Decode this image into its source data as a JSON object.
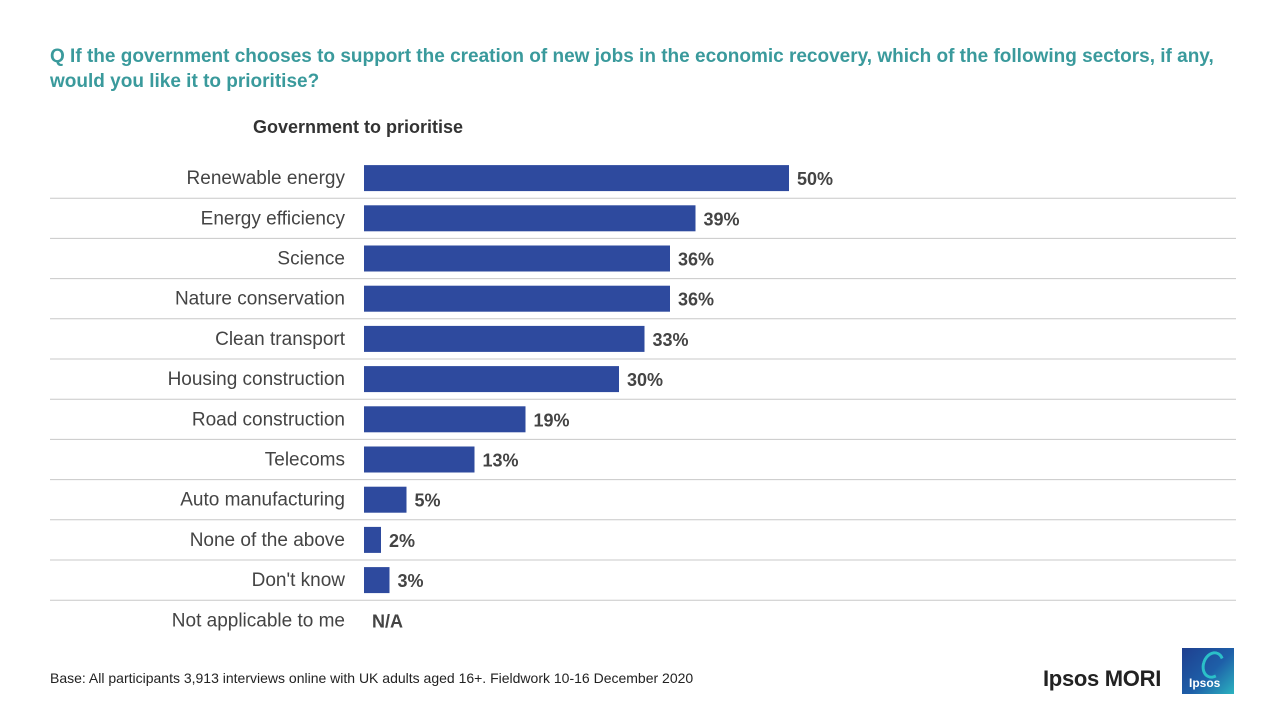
{
  "question": "Q If the government chooses to support the creation of new jobs in the economic recovery, which of the following sectors, if any, would you like it to prioritise?",
  "footer": {
    "base": "Base: All participants 3,913 interviews online with UK adults aged 16+. Fieldwork 10-16 December 2020"
  },
  "brand": {
    "name": "Ipsos MORI",
    "logo_text": "Ipsos"
  },
  "colors": {
    "bar": "#2e4a9e",
    "question": "#3a9a9c",
    "divider": "#c8c8c8"
  },
  "chart_data": {
    "type": "bar",
    "orientation": "horizontal",
    "title": "Government to prioritise",
    "xlim": [
      0,
      100
    ],
    "grid": false,
    "categories": [
      "Renewable energy",
      "Energy efficiency",
      "Science",
      "Nature conservation",
      "Clean transport",
      "Housing construction",
      "Road construction",
      "Telecoms",
      "Auto manufacturing",
      "None of the above",
      "Don't know",
      "Not applicable to me"
    ],
    "values": [
      50,
      39,
      36,
      36,
      33,
      30,
      19,
      13,
      5,
      2,
      3,
      null
    ],
    "labels": [
      "50%",
      "39%",
      "36%",
      "36%",
      "33%",
      "30%",
      "19%",
      "13%",
      "5%",
      "2%",
      "3%",
      "N/A"
    ]
  }
}
